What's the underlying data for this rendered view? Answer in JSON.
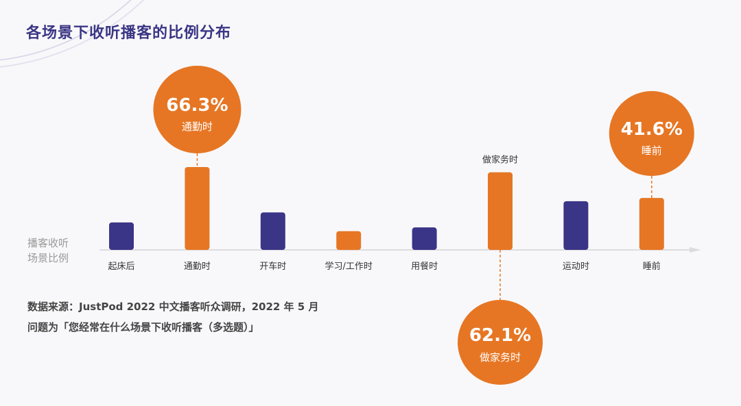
{
  "title": "各场景下收听播客的比例分布",
  "source_line1": "数据来源：JustPod 2022 中文播客听众调研，2022 年 5 月",
  "source_line2": "问题为「您经常在什么场景下收听播客（多选题）」",
  "chart_data": {
    "type": "bar",
    "title": "各场景下收听播客的比例分布",
    "ylabel": "播客收听场景比例",
    "ylabel_lines": [
      "播客收听",
      "场景比例"
    ],
    "categories": [
      "起床后",
      "通勤时",
      "开车时",
      "学习/工作时",
      "用餐时",
      "做家务时",
      "运动时",
      "睡前"
    ],
    "values": [
      22,
      66.3,
      30,
      15,
      18,
      62.1,
      39,
      41.6
    ],
    "value_labels_shown": [
      null,
      "66.3%",
      null,
      null,
      null,
      "62.1%",
      null,
      "41.6%"
    ],
    "callout_position": [
      null,
      "above",
      null,
      null,
      null,
      "below",
      null,
      "above"
    ],
    "bar_colors": [
      "#3b3587",
      "#e67624",
      "#3b3587",
      "#e67624",
      "#3b3587",
      "#e67624",
      "#3b3587",
      "#e67624"
    ],
    "grid": false,
    "colors": {
      "navy": "#3b3587",
      "orange": "#e67624",
      "axis": "#dcdce0"
    }
  }
}
